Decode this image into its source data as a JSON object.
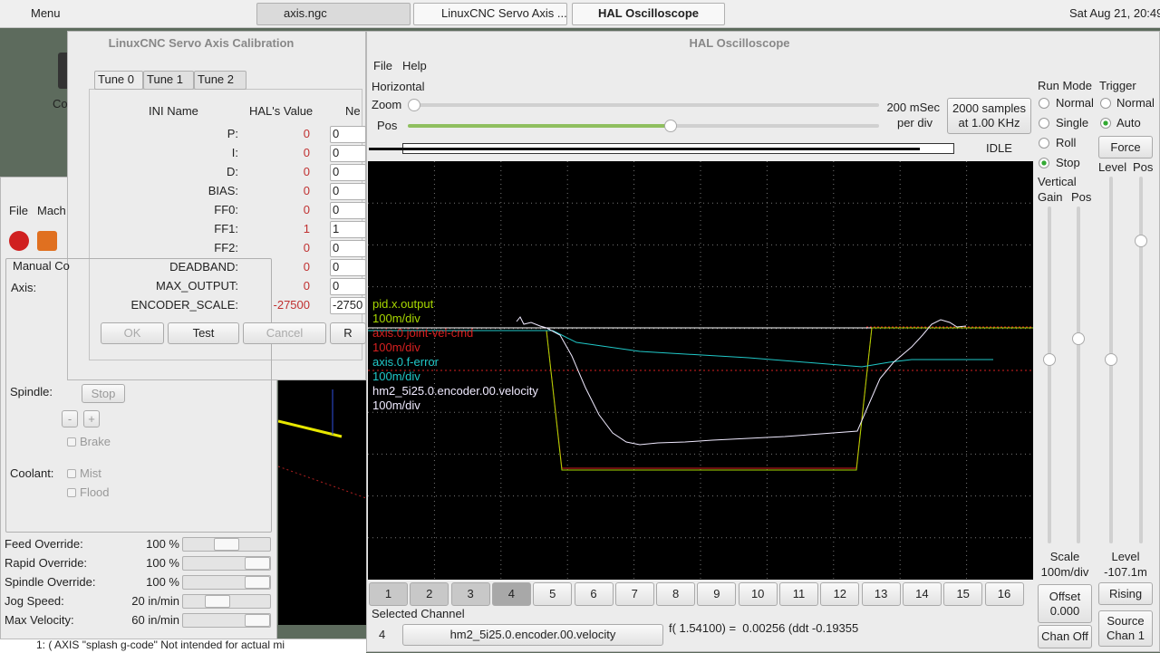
{
  "taskbar": {
    "menu": "Menu",
    "windows": [
      "axis.ngc",
      "LinuxCNC Servo Axis ...",
      "HAL Oscilloscope"
    ],
    "clock": "Sat Aug 21, 20:49"
  },
  "desktop": {
    "icon_label": "Co"
  },
  "axis_window": {
    "menu": [
      "File",
      "Mach"
    ],
    "tab": "Manual Co",
    "axis_label": "Axis:",
    "spindle_label": "Spindle:",
    "spindle_stop": "Stop",
    "minus": "-",
    "plus": "+",
    "brake": "Brake",
    "coolant_label": "Coolant:",
    "mist": "Mist",
    "flood": "Flood",
    "sliders": [
      {
        "label": "Feed Override:",
        "value": "100 %"
      },
      {
        "label": "Rapid Override:",
        "value": "100 %"
      },
      {
        "label": "Spindle Override:",
        "value": "100 %"
      },
      {
        "label": "Jog Speed:",
        "value": "20 in/min"
      },
      {
        "label": "Max Velocity:",
        "value": "60 in/min"
      }
    ],
    "gcode_line": "1: ( AXIS \"splash g-code\" Not intended for actual mi"
  },
  "calibration": {
    "title": "LinuxCNC Servo Axis Calibration",
    "tabs": [
      "Tune 0",
      "Tune 1",
      "Tune 2"
    ],
    "headers": [
      "INI Name",
      "HAL's Value",
      "Ne"
    ],
    "rows": [
      [
        "P:",
        "0",
        "0"
      ],
      [
        "I:",
        "0",
        "0"
      ],
      [
        "D:",
        "0",
        "0"
      ],
      [
        "BIAS:",
        "0",
        "0"
      ],
      [
        "FF0:",
        "0",
        "0"
      ],
      [
        "FF1:",
        "1",
        "1"
      ],
      [
        "FF2:",
        "0",
        "0"
      ],
      [
        "DEADBAND:",
        "0",
        "0"
      ],
      [
        "MAX_OUTPUT:",
        "0",
        "0"
      ],
      [
        "ENCODER_SCALE:",
        "-27500",
        "-2750"
      ]
    ],
    "buttons": [
      "OK",
      "Test",
      "Cancel",
      "R"
    ]
  },
  "scope": {
    "title": "HAL Oscilloscope",
    "menu": [
      "File",
      "Help"
    ],
    "horizontal": "Horizontal",
    "zoom": "Zoom",
    "pos": "Pos",
    "time_div": "200 mSec",
    "per_div": "per div",
    "samples": [
      "2000 samples",
      "at 1.00 KHz"
    ],
    "state": "IDLE",
    "run_mode": {
      "title": "Run Mode",
      "options": [
        "Normal",
        "Single",
        "Roll",
        "Stop"
      ]
    },
    "trigger": {
      "title": "Trigger",
      "options": [
        "Normal",
        "Auto"
      ],
      "force": "Force",
      "level": "Level",
      "pos": "Pos"
    },
    "vertical": {
      "title": "Vertical",
      "gain": "Gain",
      "pos": "Pos"
    },
    "channels": [
      {
        "name": "pid.x.output",
        "scale": "100m/div",
        "color": "#a8d800"
      },
      {
        "name": "axis.0.joint-vel-cmd",
        "scale": "100m/div",
        "color": "#d82020"
      },
      {
        "name": "axis.0.f-error",
        "scale": "100m/div",
        "color": "#20c8c8"
      },
      {
        "name": "hm2_5i25.0.encoder.00.velocity",
        "scale": "100m/div",
        "color": "#f0eaff"
      }
    ],
    "channel_buttons": [
      "1",
      "2",
      "3",
      "4",
      "5",
      "6",
      "7",
      "8",
      "9",
      "10",
      "11",
      "12",
      "13",
      "14",
      "15",
      "16"
    ],
    "selected_channel": {
      "title": "Selected Channel",
      "number": "4",
      "name": "hm2_5i25.0.encoder.00.velocity"
    },
    "readout": "f( 1.54100) =  0.00256 (ddt -0.19355",
    "scale": {
      "title": "Scale",
      "value": "100m/div"
    },
    "level_readout": {
      "title": "Level",
      "value": "-107.1m"
    },
    "offset": {
      "title": "Offset",
      "value": "0.000"
    },
    "rising": "Rising",
    "chan_off": "Chan Off",
    "source": [
      "Source",
      "Chan 1"
    ]
  }
}
